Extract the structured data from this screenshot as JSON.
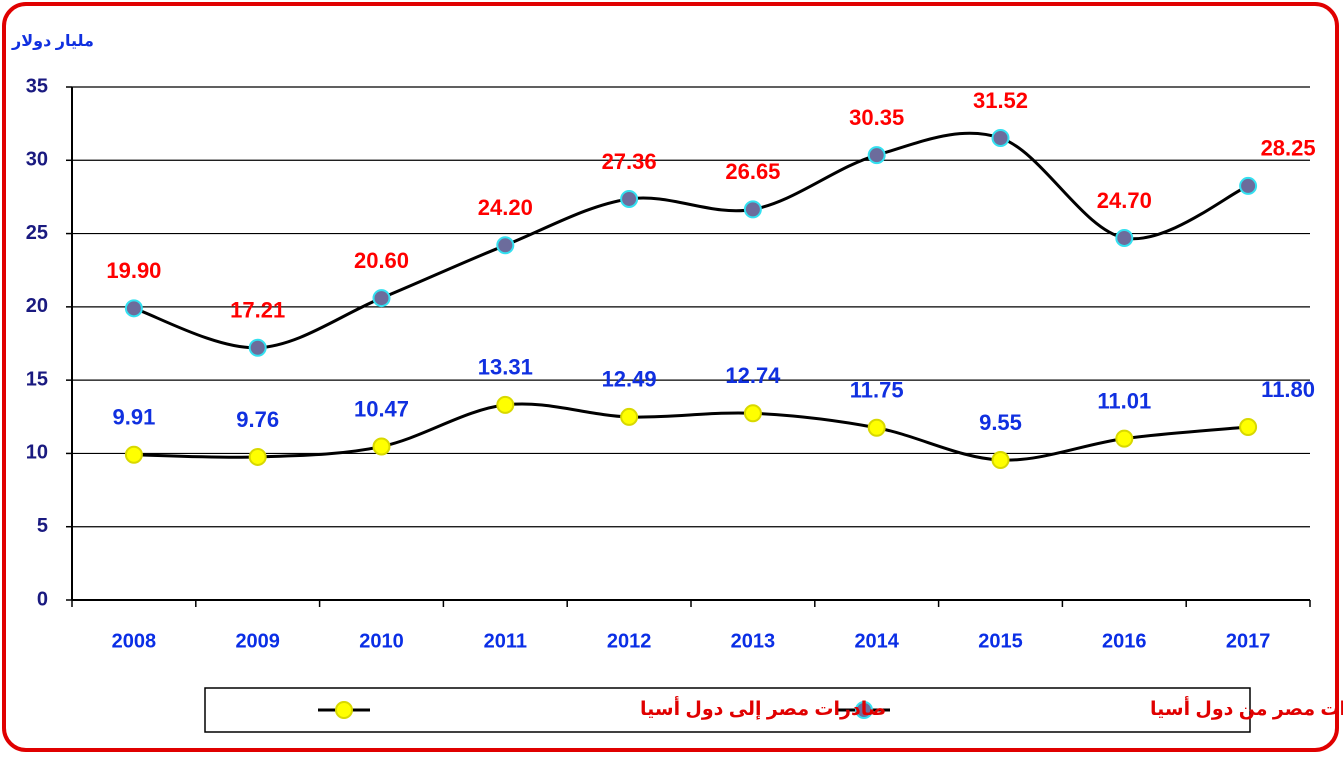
{
  "chart_data": {
    "type": "line",
    "y_label": "مليار دولار",
    "categories": [
      "2008",
      "2009",
      "2010",
      "2011",
      "2012",
      "2013",
      "2014",
      "2015",
      "2016",
      "2017"
    ],
    "series": [
      {
        "name": "واردات مصر من دول أسيا",
        "color": "#6c6c9c",
        "label_color": "#ff0000",
        "values": [
          19.9,
          17.21,
          20.6,
          24.2,
          27.36,
          26.65,
          30.35,
          31.52,
          24.7,
          28.25
        ],
        "value_labels": [
          "19.90",
          "17.21",
          "20.60",
          "24.20",
          "27.36",
          "26.65",
          "30.35",
          "31.52",
          "24.70",
          "28.25"
        ]
      },
      {
        "name": "صادرات مصر إلى دول أسيا",
        "color": "#ffff00",
        "label_color": "#1030e0",
        "values": [
          9.91,
          9.76,
          10.47,
          13.31,
          12.49,
          12.74,
          11.75,
          9.55,
          11.01,
          11.8
        ],
        "value_labels": [
          "9.91",
          "9.76",
          "10.47",
          "13.31",
          "12.49",
          "12.74",
          "11.75",
          "9.55",
          "11.01",
          "11.80"
        ]
      }
    ],
    "ylim": [
      0,
      35
    ],
    "yticks": [
      0,
      5,
      10,
      15,
      20,
      25,
      30,
      35
    ],
    "grid": true
  }
}
